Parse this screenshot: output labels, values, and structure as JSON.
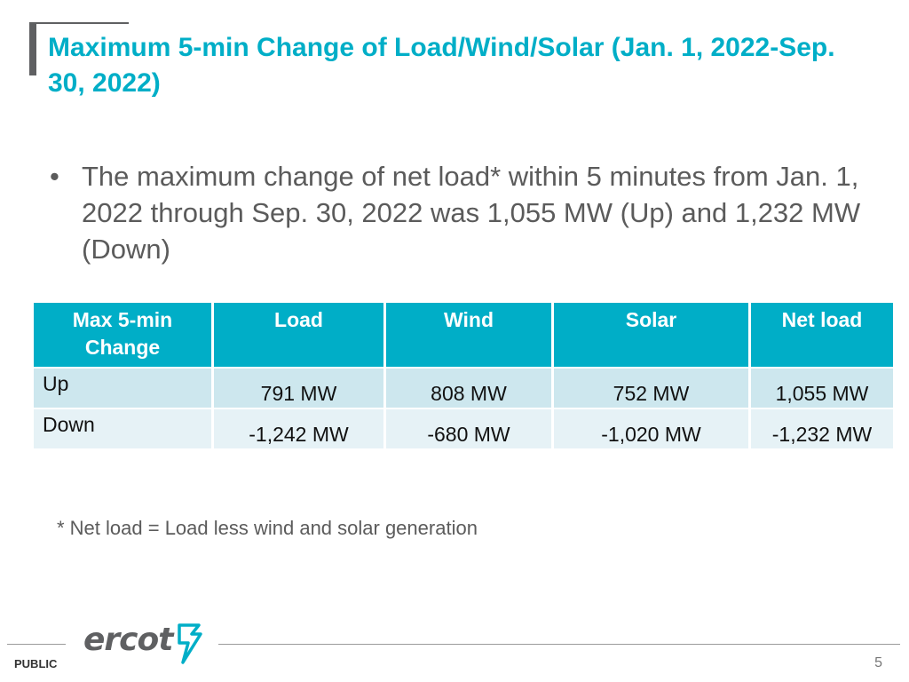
{
  "slide": {
    "title": "Maximum 5-min Change of Load/Wind/Solar (Jan. 1, 2022-Sep. 30, 2022)",
    "bullet": "The maximum change of net load* within 5 minutes from Jan. 1, 2022 through Sep. 30, 2022 was 1,055 MW (Up) and 1,232 MW (Down)",
    "footnote": "* Net load = Load less wind and solar generation"
  },
  "table": {
    "headers": [
      "Max 5-min Change",
      "Load",
      "Wind",
      "Solar",
      "Net load"
    ],
    "rows": [
      {
        "label": "Up",
        "values": [
          "791 MW",
          "808 MW",
          "752 MW",
          "1,055 MW"
        ]
      },
      {
        "label": "Down",
        "values": [
          "-1,242 MW",
          "-680 MW",
          "-1,020 MW",
          "-1,232 MW"
        ]
      }
    ]
  },
  "footer": {
    "classification": "PUBLIC",
    "page_number": "5",
    "logo_text": "ercot"
  },
  "colors": {
    "accent": "#00aec7",
    "title_bar": "#5f6062",
    "row_up": "#cde7ee",
    "row_down": "#e6f2f6"
  }
}
